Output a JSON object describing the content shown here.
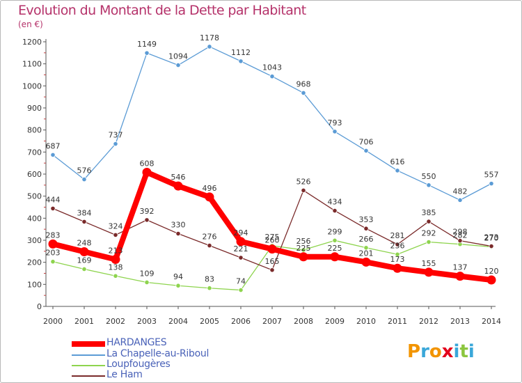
{
  "title": "Evolution du Montant de la Dette par Habitant",
  "subtitle": "(en €)",
  "chart_data": {
    "type": "line",
    "x": [
      "2000",
      "2001",
      "2002",
      "2003",
      "2004",
      "2005",
      "2006",
      "2007",
      "2008",
      "2009",
      "2010",
      "2011",
      "2012",
      "2013",
      "2014"
    ],
    "ylim": [
      0,
      1200
    ],
    "yticks": [
      0,
      100,
      200,
      300,
      400,
      500,
      600,
      700,
      800,
      900,
      1000,
      1100,
      1200
    ],
    "grid": false,
    "legend_position": "bottom-left",
    "series": [
      {
        "name": "HARDANGES",
        "color": "#ff0000",
        "values": [
          283,
          248,
          213,
          608,
          546,
          496,
          294,
          260,
          225,
          225,
          201,
          173,
          155,
          137,
          120
        ]
      },
      {
        "name": "La Chapelle-au-Riboul",
        "color": "#5b9bd5",
        "values": [
          687,
          576,
          737,
          1149,
          1094,
          1178,
          1112,
          1043,
          968,
          793,
          706,
          616,
          550,
          482,
          557
        ]
      },
      {
        "name": "Loupfougères",
        "color": "#8ed44e",
        "values": [
          203,
          169,
          138,
          109,
          94,
          83,
          74,
          275,
          256,
          299,
          266,
          236,
          292,
          282,
          270
        ]
      },
      {
        "name": "Le Ham",
        "color": "#7a2a2a",
        "values": [
          444,
          384,
          324,
          392,
          330,
          276,
          221,
          165,
          526,
          434,
          353,
          281,
          385,
          298,
          273
        ]
      }
    ]
  },
  "legend": [
    {
      "label": "HARDANGES",
      "color": "#ff0000"
    },
    {
      "label": "La Chapelle-au-Riboul",
      "color": "#5b9bd5"
    },
    {
      "label": "Loupfougères",
      "color": "#8ed44e"
    },
    {
      "label": "Le Ham",
      "color": "#7a2a2a"
    }
  ],
  "logo": {
    "letters": [
      "P",
      "r",
      "o",
      "x",
      "i",
      "t",
      "i"
    ],
    "colors": [
      "#f29400",
      "#3aa7d9",
      "#f29400",
      "#e3001b",
      "#3aa7d9",
      "#8cc63f",
      "#3aa7d9"
    ]
  }
}
